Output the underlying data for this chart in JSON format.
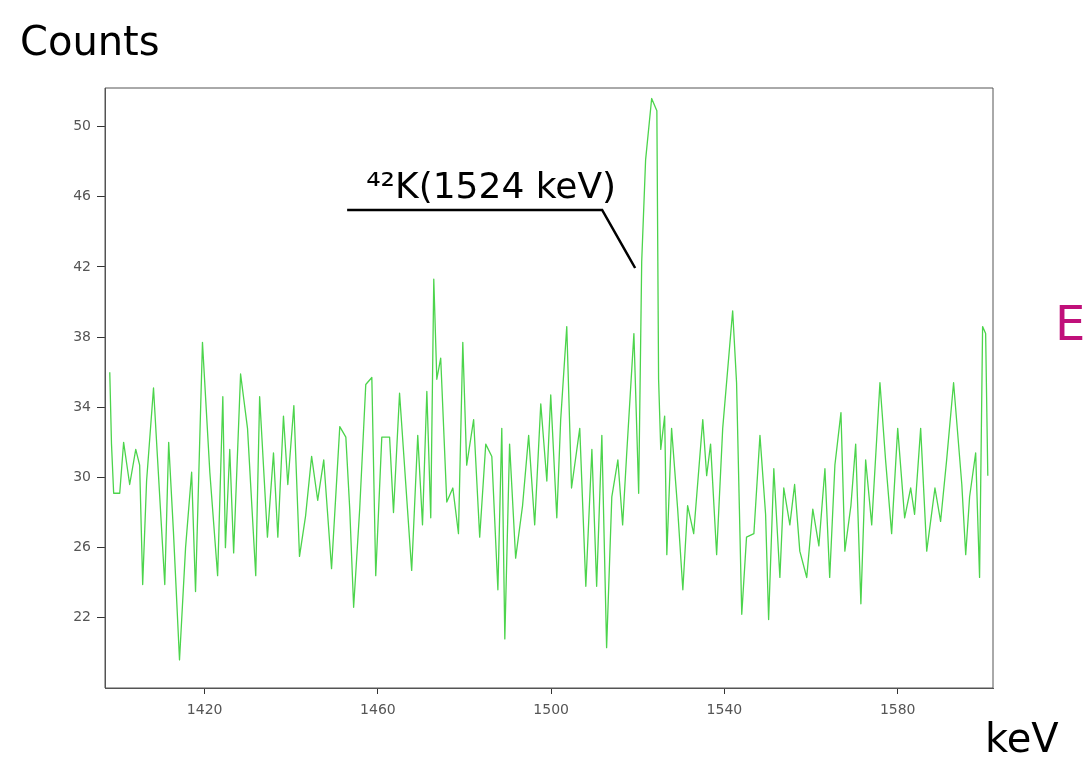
{
  "chart_data": {
    "type": "line",
    "xlabel": "keV",
    "ylabel": "Counts",
    "xlim": [
      1397,
      1602
    ],
    "xticks": [
      1420,
      1460,
      1500,
      1540,
      1580
    ],
    "ylim": [
      18,
      52.2
    ],
    "yticks": [
      22,
      26,
      30,
      34,
      38,
      42,
      46,
      50
    ],
    "grid": false,
    "legend": false,
    "marker": "none",
    "line_style": "solid",
    "annotations": [
      "⁴²K(1524 keV)",
      "E"
    ],
    "series": [
      {
        "color": "#4cd44c",
        "x": [
          1398.1,
          1398.5,
          1399.0,
          1400.4,
          1401.3,
          1402.7,
          1404.1,
          1405.0,
          1405.7,
          1406.6,
          1408.2,
          1409.1,
          1410.8,
          1411.7,
          1412.8,
          1414.2,
          1415.6,
          1417.0,
          1417.9,
          1419.5,
          1421.2,
          1423.0,
          1424.2,
          1424.8,
          1425.8,
          1426.7,
          1428.3,
          1429.9,
          1431.8,
          1432.7,
          1434.5,
          1435.9,
          1436.9,
          1438.2,
          1439.2,
          1440.6,
          1441.9,
          1443.3,
          1444.7,
          1446.1,
          1447.5,
          1449.3,
          1451.2,
          1452.6,
          1453.5,
          1454.4,
          1455.8,
          1457.2,
          1458.6,
          1459.5,
          1460.9,
          1462.7,
          1463.6,
          1465.0,
          1467.8,
          1469.2,
          1470.3,
          1471.3,
          1472.2,
          1472.9,
          1473.6,
          1474.5,
          1475.9,
          1477.3,
          1478.6,
          1479.6,
          1480.5,
          1482.1,
          1483.5,
          1484.9,
          1486.3,
          1487.7,
          1488.6,
          1489.3,
          1490.4,
          1491.8,
          1493.4,
          1494.8,
          1496.2,
          1497.6,
          1499.0,
          1499.9,
          1501.3,
          1502.2,
          1503.6,
          1504.7,
          1506.6,
          1508.0,
          1509.4,
          1510.5,
          1511.7,
          1512.8,
          1514.0,
          1515.4,
          1516.5,
          1517.4,
          1519.1,
          1520.2,
          1520.9,
          1521.8,
          1523.2,
          1524.4,
          1524.8,
          1525.3,
          1526.2,
          1526.7,
          1527.8,
          1529.2,
          1530.4,
          1531.5,
          1532.9,
          1535.0,
          1535.9,
          1536.8,
          1538.2,
          1539.6,
          1541.9,
          1542.8,
          1544.0,
          1545.1,
          1546.8,
          1548.2,
          1549.5,
          1550.2,
          1551.4,
          1552.8,
          1553.7,
          1555.1,
          1556.2,
          1557.4,
          1559.0,
          1560.4,
          1561.8,
          1563.2,
          1564.3,
          1565.5,
          1566.9,
          1567.8,
          1569.2,
          1570.3,
          1571.5,
          1572.6,
          1574.0,
          1575.9,
          1577.2,
          1578.6,
          1580.0,
          1581.6,
          1583.0,
          1583.9,
          1585.3,
          1586.7,
          1588.6,
          1589.9,
          1591.3,
          1592.9,
          1594.8,
          1595.7,
          1596.6,
          1598.0,
          1598.9,
          1599.6,
          1600.3,
          1600.8
        ],
        "values": [
          36.0,
          31.9,
          29.1,
          29.1,
          32.0,
          29.6,
          31.6,
          30.7,
          23.9,
          29.8,
          35.1,
          31.2,
          23.9,
          32.0,
          26.9,
          19.6,
          26.0,
          30.3,
          23.5,
          37.7,
          30.3,
          24.4,
          34.6,
          26.0,
          31.6,
          25.7,
          35.9,
          32.8,
          24.4,
          34.6,
          26.6,
          31.4,
          26.6,
          33.5,
          29.6,
          34.1,
          25.5,
          27.8,
          31.2,
          28.7,
          31.0,
          24.8,
          32.9,
          32.3,
          28.2,
          22.6,
          28.2,
          35.3,
          35.7,
          24.4,
          32.3,
          32.3,
          28.0,
          34.8,
          24.7,
          32.4,
          27.3,
          34.9,
          27.7,
          41.3,
          35.6,
          36.8,
          28.6,
          29.4,
          26.8,
          37.7,
          30.7,
          33.3,
          26.6,
          31.9,
          31.2,
          23.6,
          32.8,
          20.8,
          31.9,
          25.4,
          28.4,
          32.4,
          27.3,
          34.2,
          29.8,
          34.7,
          27.7,
          33.3,
          38.6,
          29.4,
          32.8,
          23.8,
          31.6,
          23.8,
          32.4,
          20.3,
          28.9,
          31.0,
          27.3,
          31.2,
          38.2,
          29.1,
          42.3,
          48.1,
          51.6,
          50.9,
          35.6,
          31.6,
          33.5,
          25.6,
          32.8,
          28.2,
          23.6,
          28.4,
          26.8,
          33.3,
          30.1,
          31.9,
          25.6,
          32.8,
          39.5,
          35.4,
          22.2,
          26.6,
          26.8,
          32.4,
          27.9,
          21.9,
          30.5,
          24.3,
          29.4,
          27.3,
          29.6,
          25.8,
          24.3,
          28.2,
          26.1,
          30.5,
          24.3,
          30.7,
          33.7,
          25.8,
          28.4,
          31.9,
          22.8,
          31.0,
          27.3,
          35.4,
          31.0,
          26.8,
          32.8,
          27.7,
          29.4,
          27.9,
          32.8,
          25.8,
          29.4,
          27.5,
          31.0,
          35.4,
          29.6,
          25.6,
          28.9,
          31.4,
          24.3,
          38.6,
          38.2,
          30.1
        ]
      }
    ]
  }
}
